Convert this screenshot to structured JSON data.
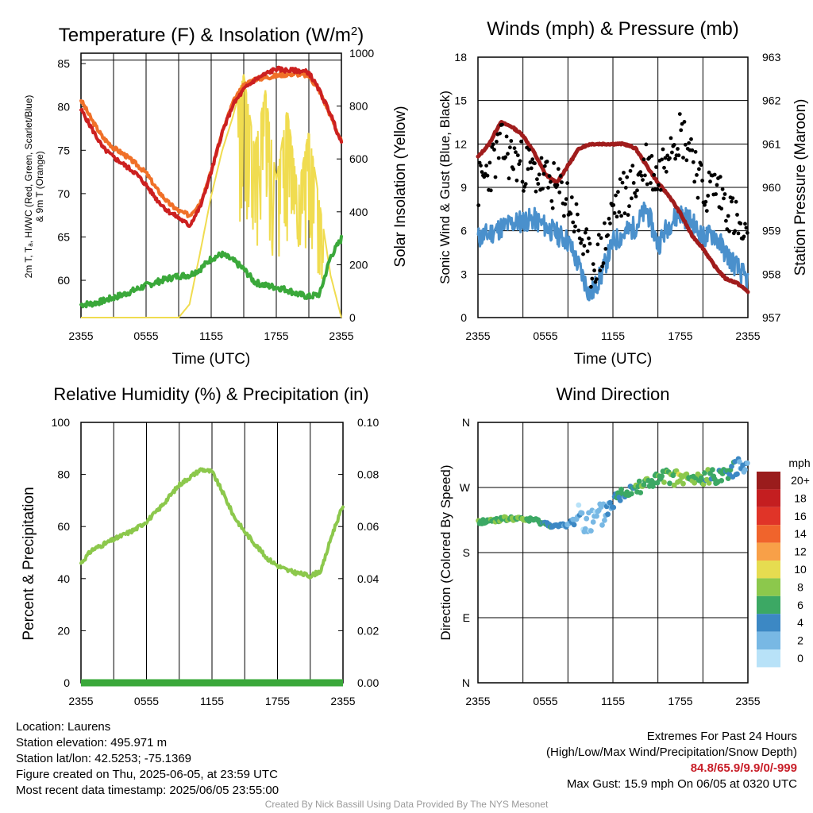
{
  "chart_data": [
    {
      "id": "temp",
      "type": "line",
      "title": "Temperature (F) & Insolation (W/m",
      "title_sup": "2",
      "title_end": ")",
      "xlabel": "Time (UTC)",
      "ylabel": "2m T, Tₐ, HI/WC (Red, Green, Scarlet/Blue)",
      "ylabel2": "& 9m T (Orange)",
      "y2label": "Solar Insolation (Yellow)",
      "x_ticks": [
        "2355",
        "0555",
        "1155",
        "1755",
        "2355"
      ],
      "ylim": [
        55.7,
        86.2
      ],
      "y_ticks": [
        60,
        65,
        70,
        75,
        80,
        85
      ],
      "y2lim": [
        0,
        1000
      ],
      "y2_ticks": [
        0,
        200,
        400,
        600,
        800,
        1000
      ],
      "hours": [
        0,
        1,
        2,
        3,
        4,
        5,
        6,
        7,
        8,
        9,
        10,
        11,
        12,
        13,
        14,
        15,
        16,
        17,
        18,
        19,
        20,
        21,
        22,
        23,
        24
      ],
      "series": [
        {
          "color": "#f07028",
          "values": [
            80.8,
            78.5,
            76.5,
            75.3,
            74.5,
            73.5,
            72.4,
            70.5,
            69,
            68,
            67.5,
            69,
            72.5,
            77,
            80.5,
            82.5,
            83.2,
            83.4,
            83.6,
            83.8,
            83.8,
            83.6,
            81.8,
            79,
            76
          ]
        },
        {
          "color": "#cc2020",
          "values": [
            79.7,
            77.5,
            75.3,
            74.2,
            73.3,
            72.4,
            71,
            69.3,
            68,
            67.2,
            66.3,
            68.5,
            72.5,
            77,
            80.2,
            82,
            83.1,
            83.8,
            84.4,
            84.2,
            84.2,
            84,
            81.8,
            79.2,
            75.8
          ]
        },
        {
          "color": "#3aa83a",
          "values": [
            57.2,
            57.3,
            57.6,
            58,
            58.4,
            58.9,
            59.4,
            59.8,
            60.2,
            60.5,
            60.6,
            61.3,
            62.5,
            63,
            62.3,
            61.3,
            59.8,
            59.4,
            59.2,
            58.9,
            58.4,
            58.1,
            58.4,
            62.7,
            64.8
          ]
        },
        {
          "color": "#f0dc50",
          "values": [
            0,
            0,
            0,
            0,
            0,
            0,
            0,
            0,
            0,
            0,
            50,
            250,
            460,
            630,
            760,
            920,
            640,
            860,
            520,
            790,
            480,
            710,
            430,
            160,
            0
          ]
        }
      ]
    },
    {
      "id": "wind",
      "type": "scatter",
      "title": "Winds (mph) & Pressure (mb)",
      "xlabel": "Time (UTC)",
      "ylabel": "Sonic Wind & Gust (Blue, Black)",
      "y2label": "Station Pressure (Maroon)",
      "x_ticks": [
        "2355",
        "0555",
        "1155",
        "1755",
        "2355"
      ],
      "ylim": [
        0,
        18
      ],
      "y_ticks": [
        0,
        3,
        6,
        9,
        12,
        15,
        18
      ],
      "y2lim": [
        957,
        963
      ],
      "y2_ticks": [
        957,
        958,
        959,
        960,
        961,
        962,
        963
      ],
      "hours": [
        0,
        1,
        2,
        3,
        4,
        5,
        6,
        7,
        8,
        9,
        10,
        11,
        12,
        13,
        14,
        15,
        16,
        17,
        18,
        19,
        20,
        21,
        22,
        23,
        24
      ],
      "series": [
        {
          "name": "pressure",
          "color": "#a01c1c",
          "values": [
            960.7,
            961,
            961.5,
            961.4,
            961.2,
            960.8,
            960.3,
            960.1,
            960.5,
            960.9,
            961,
            961,
            961,
            961,
            960.9,
            960.5,
            960.1,
            959.8,
            959.4,
            958.9,
            958.6,
            958.2,
            957.9,
            957.8,
            957.6
          ]
        },
        {
          "name": "wind",
          "color": "#4a90cc",
          "values": [
            5.5,
            5.8,
            6.2,
            6.5,
            6.7,
            6.8,
            6.3,
            5.8,
            5.3,
            3.5,
            1.5,
            3,
            5.2,
            5.8,
            6.3,
            7.5,
            5,
            6.5,
            7.2,
            6.6,
            5.5,
            5.8,
            4.5,
            3.5,
            2.5
          ]
        },
        {
          "name": "gust",
          "color": "#000000",
          "values": [
            9,
            10.2,
            11.8,
            11,
            10.5,
            10,
            9.5,
            8.8,
            8.2,
            6,
            3.5,
            4.5,
            7.5,
            8.5,
            9.2,
            10.8,
            9.5,
            12.5,
            12.8,
            11.8,
            8.5,
            9.2,
            8,
            6.5,
            4.5
          ]
        }
      ]
    },
    {
      "id": "rh",
      "type": "line",
      "title": "Relative Humidity (%) & Precipitation (in)",
      "ylabel": "Percent & Precipitation",
      "x_ticks": [
        "2355",
        "0555",
        "1155",
        "1755",
        "2355"
      ],
      "ylim": [
        0,
        100
      ],
      "y_ticks": [
        0,
        20,
        40,
        60,
        80,
        100
      ],
      "y2lim": [
        0,
        0.1
      ],
      "y2_ticks": [
        "0.00",
        "0.02",
        "0.04",
        "0.06",
        "0.08",
        "0.10"
      ],
      "hours": [
        0,
        1,
        2,
        3,
        4,
        5,
        6,
        7,
        8,
        9,
        10,
        11,
        12,
        13,
        14,
        15,
        16,
        17,
        18,
        19,
        20,
        21,
        22,
        23,
        24
      ],
      "series": [
        {
          "name": "rh",
          "color": "#8cc84c",
          "values": [
            46,
            51,
            53,
            55,
            57,
            59,
            62,
            66,
            71,
            76,
            79,
            82,
            81,
            73,
            64,
            58,
            53,
            48,
            45,
            43,
            42,
            41,
            43,
            57,
            68
          ]
        },
        {
          "name": "precip",
          "color": "#3aa83a",
          "values": [
            0,
            0,
            0,
            0,
            0,
            0,
            0,
            0,
            0,
            0,
            0,
            0,
            0,
            0,
            0,
            0,
            0,
            0,
            0,
            0,
            0,
            0,
            0,
            0,
            0
          ]
        }
      ]
    },
    {
      "id": "dir",
      "type": "scatter",
      "title": "Wind Direction",
      "ylabel": "Direction (Colored By Speed)",
      "x_ticks": [
        "2355",
        "0555",
        "1155",
        "1755",
        "2355"
      ],
      "ylim": [
        0,
        360
      ],
      "y_ticks": [
        "N",
        "E",
        "S",
        "W",
        "N"
      ],
      "hours": [
        0,
        1,
        2,
        3,
        4,
        5,
        6,
        7,
        8,
        9,
        10,
        11,
        12,
        13,
        14,
        15,
        16,
        17,
        18,
        19,
        20,
        21,
        22,
        23,
        24
      ],
      "directions": [
        222,
        224,
        226,
        227,
        226,
        225,
        220,
        216,
        218,
        235,
        220,
        230,
        250,
        265,
        272,
        276,
        280,
        285,
        282,
        280,
        282,
        286,
        290,
        298,
        305
      ],
      "speeds": [
        6,
        6,
        7,
        7,
        7,
        6,
        5,
        4,
        3,
        2,
        1,
        2,
        4,
        5,
        6,
        7,
        6,
        7,
        8,
        7,
        6,
        6,
        5,
        4,
        3
      ],
      "legend_title": "mph",
      "legend": [
        {
          "label": "20+",
          "color": "#9a1c1c"
        },
        {
          "label": "18",
          "color": "#c41e20"
        },
        {
          "label": "16",
          "color": "#e03428"
        },
        {
          "label": "14",
          "color": "#f0642c"
        },
        {
          "label": "12",
          "color": "#f8a048"
        },
        {
          "label": "10",
          "color": "#e6dc50"
        },
        {
          "label": "8",
          "color": "#8cc84c"
        },
        {
          "label": "6",
          "color": "#3ca864"
        },
        {
          "label": "4",
          "color": "#3c88c4"
        },
        {
          "label": "2",
          "color": "#78b8e4"
        },
        {
          "label": "0",
          "color": "#b8e2f8"
        }
      ]
    }
  ],
  "info": {
    "location": "Location: Laurens",
    "elevation": "Station elevation: 495.971 m",
    "latlon": "Station lat/lon: 42.5253; -75.1369",
    "created": "Figure created on Thu, 2025-06-05, at 23:59 UTC",
    "recent": "Most recent data timestamp: 2025/06/05 23:55:00"
  },
  "extremes": {
    "title": "Extremes For Past 24 Hours",
    "subtitle": "(High/Low/Max Wind/Precipitation/Snow Depth)",
    "values": "84.8/65.9/9.9/0/-999",
    "gust": "Max Gust: 15.9 mph On 06/05 at 0320 UTC"
  },
  "credit": "Created By Nick Bassill Using Data Provided By The NYS Mesonet"
}
